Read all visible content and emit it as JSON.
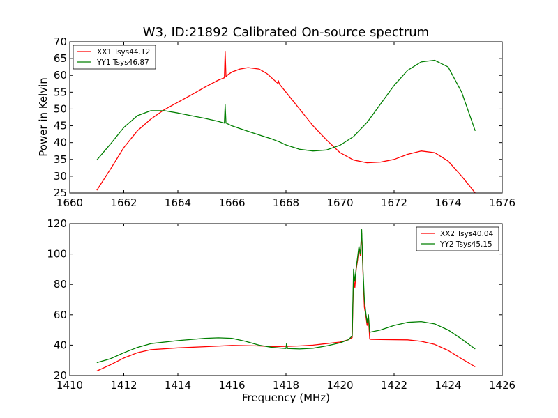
{
  "window": {
    "title": "W3, ID:21892 Calibrated On-source spectrum"
  },
  "colors": {
    "xx": "#ff0000",
    "yy": "#007f00",
    "axis": "#000000",
    "background": "#ffffff"
  },
  "chart_data": [
    {
      "type": "line",
      "title": "W3, ID:21892 Calibrated On-source spectrum",
      "xlabel": "",
      "ylabel": "Power in Kelvin",
      "xlim": [
        1660,
        1676
      ],
      "ylim": [
        25,
        70
      ],
      "xticks": [
        "1660",
        "1662",
        "1664",
        "1666",
        "1668",
        "1670",
        "1672",
        "1674",
        "1676"
      ],
      "yticks": [
        "25",
        "30",
        "35",
        "40",
        "45",
        "50",
        "55",
        "60",
        "65",
        "70"
      ],
      "grid": false,
      "legend": {
        "position": "top-left",
        "entries": [
          "XX1 Tsys44.12",
          "YY1 Tsys46.87"
        ]
      },
      "series": [
        {
          "name": "XX1 Tsys44.12",
          "color": "#ff0000",
          "x": [
            1661.0,
            1661.5,
            1662.0,
            1662.5,
            1663.0,
            1663.5,
            1664.0,
            1664.5,
            1665.0,
            1665.5,
            1665.72,
            1665.75,
            1665.78,
            1665.85,
            1666.0,
            1666.3,
            1666.6,
            1667.0,
            1667.3,
            1667.7,
            1667.72,
            1667.74,
            1667.76,
            1668.0,
            1668.5,
            1669.0,
            1669.5,
            1670.0,
            1670.5,
            1671.0,
            1671.5,
            1672.0,
            1672.5,
            1673.0,
            1673.5,
            1674.0,
            1674.5,
            1675.0
          ],
          "y": [
            25.8,
            32.0,
            38.5,
            43.5,
            47.0,
            49.8,
            52.0,
            54.2,
            56.5,
            58.6,
            59.3,
            67.2,
            59.6,
            60.2,
            61.0,
            61.9,
            62.3,
            61.9,
            60.5,
            57.6,
            58.4,
            57.9,
            57.4,
            55.0,
            50.0,
            45.0,
            40.8,
            37.0,
            34.8,
            34.0,
            34.2,
            35.0,
            36.5,
            37.5,
            37.0,
            34.5,
            30.0,
            25.0
          ]
        },
        {
          "name": "YY1 Tsys46.87",
          "color": "#007f00",
          "x": [
            1661.0,
            1661.5,
            1662.0,
            1662.5,
            1663.0,
            1663.5,
            1664.0,
            1664.5,
            1665.0,
            1665.5,
            1665.72,
            1665.75,
            1665.78,
            1666.0,
            1666.5,
            1667.0,
            1667.5,
            1667.72,
            1667.74,
            1667.76,
            1668.0,
            1668.5,
            1669.0,
            1669.5,
            1670.0,
            1670.5,
            1671.0,
            1671.5,
            1672.0,
            1672.5,
            1673.0,
            1673.5,
            1674.0,
            1674.5,
            1675.0
          ],
          "y": [
            34.8,
            39.5,
            44.5,
            48.0,
            49.5,
            49.5,
            48.8,
            48.0,
            47.2,
            46.3,
            45.8,
            51.3,
            45.8,
            45.0,
            43.6,
            42.3,
            41.0,
            40.3,
            40.3,
            40.2,
            39.3,
            38.0,
            37.5,
            37.8,
            39.2,
            41.8,
            46.0,
            51.5,
            57.0,
            61.5,
            64.0,
            64.5,
            62.5,
            55.0,
            43.5
          ]
        }
      ]
    },
    {
      "type": "line",
      "title": "",
      "xlabel": "Frequency (MHz)",
      "ylabel": "",
      "xlim": [
        1410,
        1426
      ],
      "ylim": [
        20,
        120
      ],
      "xticks": [
        "1410",
        "1412",
        "1414",
        "1416",
        "1418",
        "1420",
        "1422",
        "1424",
        "1426"
      ],
      "yticks": [
        "20",
        "40",
        "60",
        "80",
        "100",
        "120"
      ],
      "grid": false,
      "legend": {
        "position": "top-right",
        "entries": [
          "XX2 Tsys40.04",
          "YY2 Tsys45.15"
        ]
      },
      "series": [
        {
          "name": "XX2 Tsys40.04",
          "color": "#ff0000",
          "x": [
            1411.0,
            1411.5,
            1412.0,
            1412.5,
            1413.0,
            1414.0,
            1415.0,
            1416.0,
            1417.0,
            1417.5,
            1418.0,
            1418.02,
            1418.06,
            1418.5,
            1419.0,
            1419.5,
            1420.0,
            1420.3,
            1420.45,
            1420.5,
            1420.55,
            1420.6,
            1420.65,
            1420.7,
            1420.75,
            1420.8,
            1420.85,
            1420.9,
            1420.95,
            1421.0,
            1421.05,
            1421.1,
            1421.15,
            1421.5,
            1422.0,
            1422.5,
            1423.0,
            1423.5,
            1424.0,
            1424.5,
            1425.0
          ],
          "y": [
            23.0,
            27.0,
            31.5,
            35.0,
            37.0,
            38.2,
            39.0,
            39.8,
            39.5,
            39.0,
            39.2,
            40.0,
            39.2,
            39.5,
            40.0,
            41.0,
            42.0,
            43.5,
            45.0,
            84.0,
            78.0,
            90.0,
            96.0,
            104.0,
            99.0,
            114.0,
            88.0,
            65.0,
            60.0,
            53.0,
            58.0,
            44.0,
            43.8,
            43.7,
            43.6,
            43.5,
            42.5,
            40.5,
            36.5,
            31.0,
            25.8
          ]
        },
        {
          "name": "YY2 Tsys45.15",
          "color": "#007f00",
          "x": [
            1411.0,
            1411.5,
            1412.0,
            1412.5,
            1413.0,
            1414.0,
            1415.0,
            1415.5,
            1416.0,
            1416.5,
            1417.0,
            1417.5,
            1418.0,
            1418.02,
            1418.06,
            1418.5,
            1419.0,
            1419.5,
            1420.0,
            1420.3,
            1420.45,
            1420.5,
            1420.55,
            1420.6,
            1420.65,
            1420.7,
            1420.75,
            1420.8,
            1420.85,
            1420.9,
            1420.95,
            1421.0,
            1421.05,
            1421.1,
            1421.5,
            1422.0,
            1422.5,
            1423.0,
            1423.5,
            1424.0,
            1424.5,
            1425.0
          ],
          "y": [
            28.5,
            31.0,
            35.0,
            38.5,
            41.0,
            43.0,
            44.5,
            44.8,
            44.5,
            42.5,
            40.0,
            38.5,
            37.8,
            41.0,
            37.8,
            37.5,
            38.0,
            39.5,
            41.5,
            43.5,
            46.0,
            90.0,
            82.0,
            91.0,
            98.0,
            105.0,
            100.0,
            116.0,
            90.0,
            70.0,
            62.0,
            55.0,
            60.0,
            48.5,
            50.0,
            53.0,
            55.0,
            55.5,
            54.0,
            50.0,
            44.0,
            37.5
          ]
        }
      ]
    }
  ]
}
